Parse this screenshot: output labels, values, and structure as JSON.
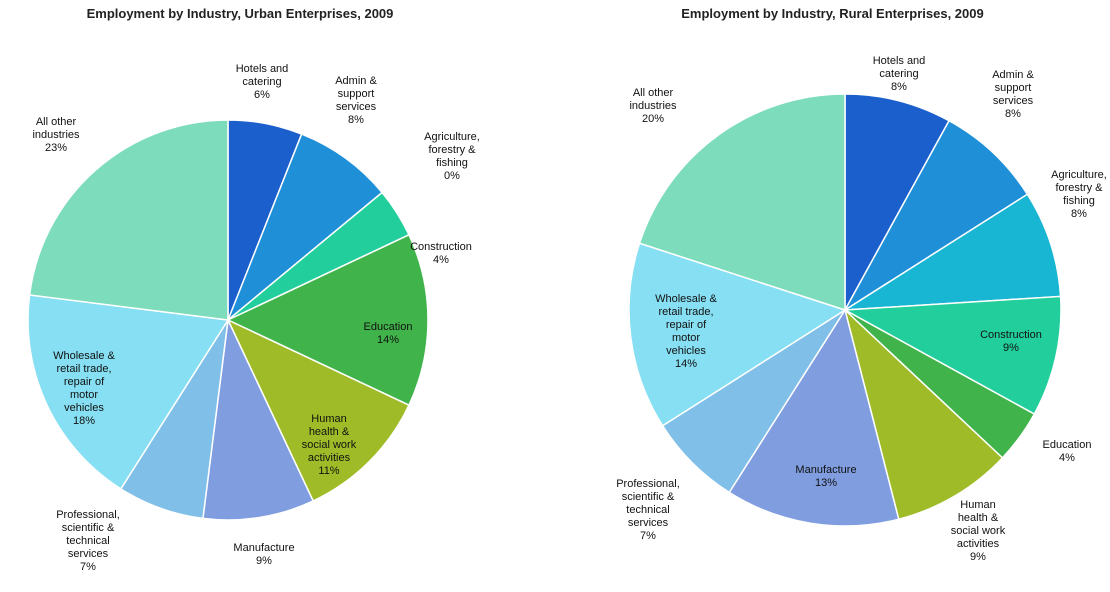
{
  "chart_data": [
    {
      "type": "pie",
      "title": "Employment by Industry, Urban Enterprises, 2009",
      "slices": [
        {
          "label": "Hotels and catering",
          "value": 6,
          "value_label": "6%",
          "color": "#1a5fcc"
        },
        {
          "label": "Admin & support services",
          "value": 8,
          "value_label": "8%",
          "color": "#1f8fd8"
        },
        {
          "label": "Agriculture, forestry & fishing",
          "value": 0,
          "value_label": "0%",
          "color": "#19b6c9"
        },
        {
          "label": "Construction",
          "value": 4,
          "value_label": "4%",
          "color": "#22cf9c"
        },
        {
          "label": "Education",
          "value": 14,
          "value_label": "14%",
          "color": "#40b34a"
        },
        {
          "label": "Human health & social work activities",
          "value": 11,
          "value_label": "11%",
          "color": "#9fbc28"
        },
        {
          "label": "Manufacture",
          "value": 9,
          "value_label": "9%",
          "color": "#7f9ddf"
        },
        {
          "label": "Professional, scientific & technical services",
          "value": 7,
          "value_label": "7%",
          "color": "#7fbfe8"
        },
        {
          "label": "Wholesale & retail trade, repair of motor vehicles",
          "value": 18,
          "value_label": "18%",
          "color": "#86dff2"
        },
        {
          "label": "All other industries",
          "value": 23,
          "value_label": "23%",
          "color": "#7ddcbc"
        }
      ]
    },
    {
      "type": "pie",
      "title": "Employment by Industry, Rural Enterprises, 2009",
      "slices": [
        {
          "label": "Hotels and catering",
          "value": 8,
          "value_label": "8%",
          "color": "#1a5fcc"
        },
        {
          "label": "Admin & support services",
          "value": 8,
          "value_label": "8%",
          "color": "#1f8fd8"
        },
        {
          "label": "Agriculture, forestry & fishing",
          "value": 8,
          "value_label": "8%",
          "color": "#19b6d4"
        },
        {
          "label": "Construction",
          "value": 9,
          "value_label": "9%",
          "color": "#22cf9c"
        },
        {
          "label": "Education",
          "value": 4,
          "value_label": "4%",
          "color": "#40b34a"
        },
        {
          "label": "Human health & social work activities",
          "value": 9,
          "value_label": "9%",
          "color": "#9fbc28"
        },
        {
          "label": "Manufacture",
          "value": 13,
          "value_label": "13%",
          "color": "#7f9ddf"
        },
        {
          "label": "Professional, scientific & technical services",
          "value": 7,
          "value_label": "7%",
          "color": "#7fbfe8"
        },
        {
          "label": "Wholesale & retail trade, repair of motor vehicles",
          "value": 14,
          "value_label": "14%",
          "color": "#86dff2"
        },
        {
          "label": "All other industries",
          "value": 20,
          "value_label": "20%",
          "color": "#7ddcbc"
        }
      ]
    }
  ]
}
